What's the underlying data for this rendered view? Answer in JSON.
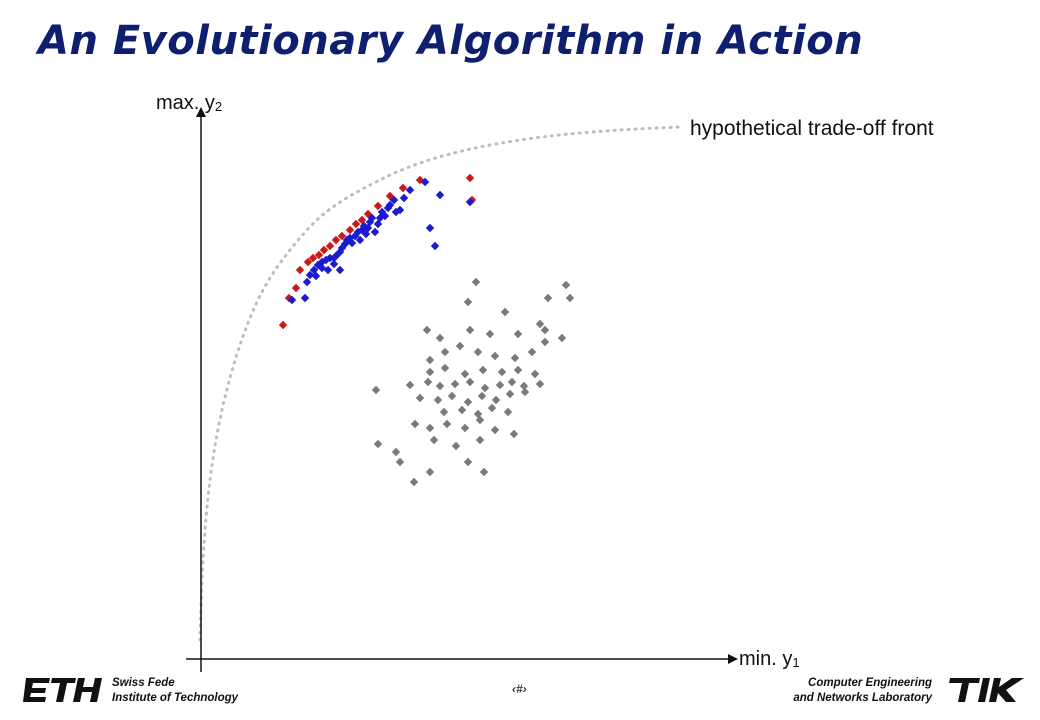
{
  "slide": {
    "title": "An Evolutionary Algorithm in Action",
    "y_axis_label": "max. y",
    "y_axis_sub": "2",
    "x_axis_label": "min. y",
    "x_axis_sub": "1",
    "front_label": "hypothetical trade-off front",
    "page_number": "‹#›"
  },
  "footer": {
    "left_line1": "Swiss Fede",
    "left_line2": "Institute of Technology",
    "right_line1": "Computer Engineering",
    "right_line2": "and Networks Laboratory",
    "left_logo_text": "ETH",
    "right_logo_text": "TIK"
  },
  "colors": {
    "title": "#0d1f6e",
    "red": "#cc1818",
    "blue": "#1a1ad0",
    "gray": "#7a7a7a",
    "front": "#bdbdbd"
  },
  "chart_data": {
    "type": "scatter",
    "series": [
      {
        "color": "red",
        "points": [
          [
            283,
            325
          ],
          [
            289,
            298
          ],
          [
            296,
            288
          ],
          [
            300,
            270
          ],
          [
            308,
            262
          ],
          [
            313,
            258
          ],
          [
            319,
            255
          ],
          [
            324,
            250
          ],
          [
            330,
            246
          ],
          [
            336,
            240
          ],
          [
            342,
            236
          ],
          [
            350,
            230
          ],
          [
            356,
            224
          ],
          [
            362,
            220
          ],
          [
            368,
            214
          ],
          [
            378,
            206
          ],
          [
            390,
            196
          ],
          [
            403,
            188
          ],
          [
            420,
            180
          ],
          [
            470,
            178
          ],
          [
            472,
            200
          ]
        ]
      },
      {
        "color": "blue",
        "points": [
          [
            292,
            300
          ],
          [
            305,
            298
          ],
          [
            307,
            282
          ],
          [
            310,
            275
          ],
          [
            314,
            270
          ],
          [
            318,
            265
          ],
          [
            322,
            262
          ],
          [
            326,
            260
          ],
          [
            330,
            258
          ],
          [
            334,
            264
          ],
          [
            336,
            256
          ],
          [
            340,
            252
          ],
          [
            342,
            248
          ],
          [
            345,
            244
          ],
          [
            347,
            240
          ],
          [
            350,
            238
          ],
          [
            352,
            243
          ],
          [
            355,
            236
          ],
          [
            358,
            232
          ],
          [
            360,
            240
          ],
          [
            362,
            230
          ],
          [
            364,
            226
          ],
          [
            366,
            234
          ],
          [
            368,
            228
          ],
          [
            370,
            222
          ],
          [
            372,
            218
          ],
          [
            375,
            232
          ],
          [
            378,
            224
          ],
          [
            380,
            218
          ],
          [
            382,
            212
          ],
          [
            385,
            216
          ],
          [
            388,
            208
          ],
          [
            390,
            205
          ],
          [
            394,
            200
          ],
          [
            396,
            212
          ],
          [
            400,
            210
          ],
          [
            404,
            198
          ],
          [
            410,
            190
          ],
          [
            425,
            182
          ],
          [
            440,
            195
          ],
          [
            430,
            228
          ],
          [
            435,
            246
          ],
          [
            470,
            202
          ],
          [
            340,
            270
          ],
          [
            328,
            270
          ],
          [
            316,
            276
          ],
          [
            322,
            268
          ],
          [
            334,
            258
          ]
        ]
      },
      {
        "color": "gray",
        "points": [
          [
            476,
            282
          ],
          [
            468,
            302
          ],
          [
            505,
            312
          ],
          [
            548,
            298
          ],
          [
            566,
            285
          ],
          [
            570,
            298
          ],
          [
            427,
            330
          ],
          [
            440,
            338
          ],
          [
            470,
            330
          ],
          [
            490,
            334
          ],
          [
            518,
            334
          ],
          [
            540,
            324
          ],
          [
            545,
            330
          ],
          [
            562,
            338
          ],
          [
            430,
            360
          ],
          [
            445,
            352
          ],
          [
            460,
            346
          ],
          [
            478,
            352
          ],
          [
            495,
            356
          ],
          [
            515,
            358
          ],
          [
            532,
            352
          ],
          [
            545,
            342
          ],
          [
            430,
            372
          ],
          [
            445,
            368
          ],
          [
            465,
            374
          ],
          [
            483,
            370
          ],
          [
            502,
            372
          ],
          [
            518,
            370
          ],
          [
            535,
            374
          ],
          [
            376,
            390
          ],
          [
            410,
            385
          ],
          [
            428,
            382
          ],
          [
            440,
            386
          ],
          [
            455,
            384
          ],
          [
            470,
            382
          ],
          [
            485,
            388
          ],
          [
            500,
            385
          ],
          [
            512,
            382
          ],
          [
            524,
            386
          ],
          [
            540,
            384
          ],
          [
            420,
            398
          ],
          [
            438,
            400
          ],
          [
            452,
            396
          ],
          [
            468,
            402
          ],
          [
            482,
            396
          ],
          [
            496,
            400
          ],
          [
            510,
            394
          ],
          [
            525,
            392
          ],
          [
            444,
            412
          ],
          [
            462,
            410
          ],
          [
            478,
            414
          ],
          [
            492,
            408
          ],
          [
            508,
            412
          ],
          [
            415,
            424
          ],
          [
            430,
            428
          ],
          [
            447,
            424
          ],
          [
            465,
            428
          ],
          [
            480,
            420
          ],
          [
            495,
            430
          ],
          [
            514,
            434
          ],
          [
            378,
            444
          ],
          [
            434,
            440
          ],
          [
            456,
            446
          ],
          [
            480,
            440
          ],
          [
            396,
            452
          ],
          [
            400,
            462
          ],
          [
            468,
            462
          ],
          [
            430,
            472
          ],
          [
            484,
            472
          ],
          [
            414,
            482
          ]
        ]
      }
    ],
    "front_curve": [
      [
        200,
        640
      ],
      [
        203,
        560
      ],
      [
        210,
        480
      ],
      [
        222,
        410
      ],
      [
        240,
        345
      ],
      [
        262,
        292
      ],
      [
        290,
        250
      ],
      [
        325,
        213
      ],
      [
        370,
        185
      ],
      [
        420,
        163
      ],
      [
        480,
        147
      ],
      [
        550,
        136
      ],
      [
        620,
        130
      ],
      [
        680,
        127
      ]
    ]
  }
}
